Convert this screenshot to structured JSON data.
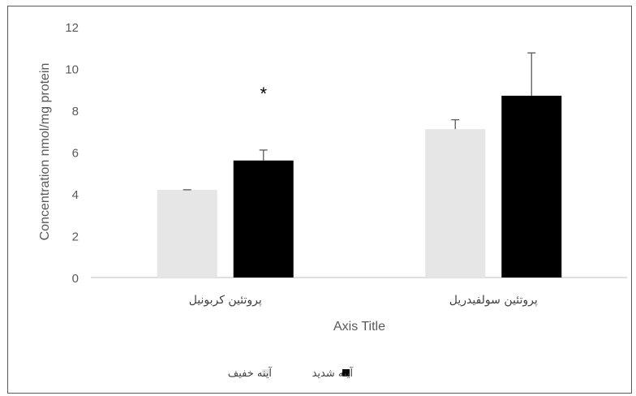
{
  "chart_data": {
    "type": "bar",
    "categories": [
      "پروتئین کربونیل",
      "پروتئین سولفیدریل"
    ],
    "series": [
      {
        "name": "آینه خفیف",
        "values": [
          4.2,
          7.1
        ],
        "errors": [
          0.0,
          0.45
        ],
        "color": "#e6e6e6"
      },
      {
        "name": "آینه شدید",
        "values": [
          5.6,
          8.7
        ],
        "errors": [
          0.5,
          2.05
        ],
        "color": "#000000"
      }
    ],
    "xlabel": "Axis Title",
    "ylabel": "Concentration nmol/mg protein",
    "ylim": [
      0,
      12
    ],
    "yticks": [
      "0",
      "2",
      "4",
      "6",
      "8",
      "10",
      "12"
    ],
    "annotations": [
      {
        "text": "*",
        "category": 0,
        "series": 1
      }
    ],
    "grid": false,
    "legend": "bottom"
  }
}
